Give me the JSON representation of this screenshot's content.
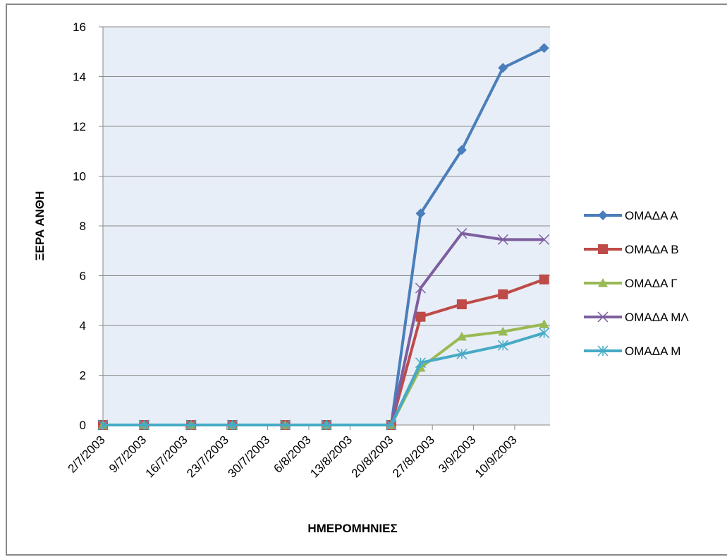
{
  "chart_data": {
    "type": "line",
    "ylabel": "ΞΕΡΑ ΑΝΘΗ",
    "xlabel": "ΗΜΕΡΟΜΗΝΙΕΣ",
    "x": [
      "2/7/2003",
      "9/7/2003",
      "17/7/2003",
      "24/7/2003",
      "2/8/2003",
      "9/8/2003",
      "20/8/2003",
      "25/8/2003",
      "1/9/2003",
      "8/9/2003",
      "15/9/2003"
    ],
    "xlim": [
      "2/7/2003",
      "16/9/2003"
    ],
    "xticks": [
      "2/7/2003",
      "9/7/2003",
      "16/7/2003",
      "23/7/2003",
      "30/7/2003",
      "6/8/2003",
      "13/8/2003",
      "20/8/2003",
      "27/8/2003",
      "3/9/2003",
      "10/9/2003"
    ],
    "ylim": [
      0,
      16
    ],
    "yticks": [
      0,
      2,
      4,
      6,
      8,
      10,
      12,
      14,
      16
    ],
    "grid": true,
    "series": [
      {
        "name": "ΟΜΑΔΑ Α",
        "color": "#4a7ebb",
        "marker": "diamond",
        "values": [
          0,
          0,
          0,
          0,
          0,
          0,
          0,
          8.5,
          11.05,
          14.35,
          15.15
        ]
      },
      {
        "name": "ΟΜΑΔΑ Β",
        "color": "#be4b48",
        "marker": "square",
        "values": [
          0,
          0,
          0,
          0,
          0,
          0,
          0,
          4.35,
          4.85,
          5.25,
          5.85
        ]
      },
      {
        "name": "ΟΜΑΔΑ Γ",
        "color": "#98b954",
        "marker": "triangle",
        "values": [
          0,
          0,
          0,
          0,
          0,
          0,
          0,
          2.3,
          3.55,
          3.75,
          4.05
        ]
      },
      {
        "name": "ΟΜΑΔΑ ΜΛ",
        "color": "#7d5fa0",
        "marker": "x",
        "values": [
          0,
          0,
          0,
          0,
          0,
          0,
          0,
          5.5,
          7.7,
          7.45,
          7.45
        ]
      },
      {
        "name": "ΟΜΑΔΑ Μ",
        "color": "#46aac5",
        "marker": "star",
        "values": [
          0,
          0,
          0,
          0,
          0,
          0,
          0,
          2.5,
          2.85,
          3.2,
          3.7
        ]
      }
    ]
  }
}
